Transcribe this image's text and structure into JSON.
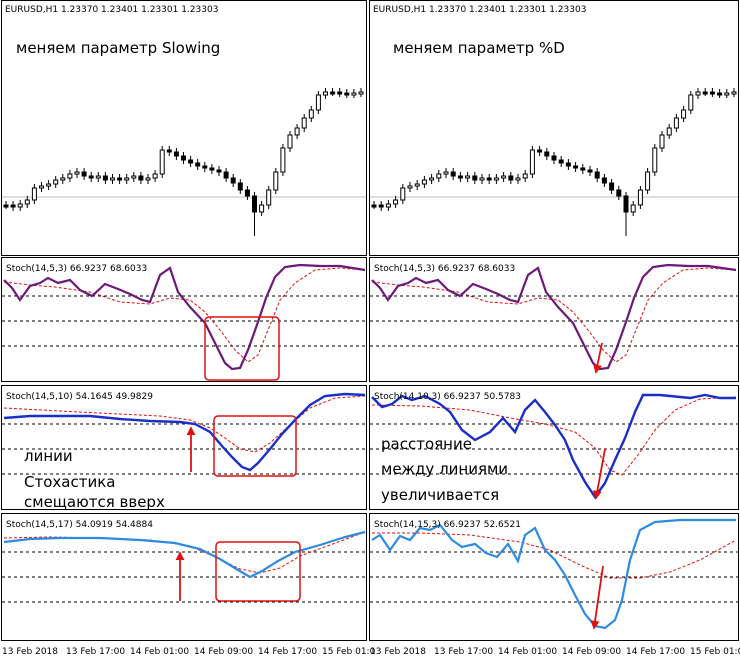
{
  "colors": {
    "candle": "#000000",
    "grid": "#000000",
    "stoch_purple": "#6b1a78",
    "stoch_blue_dark": "#1a2ec8",
    "stoch_blue_light": "#2e8be0",
    "signal_red": "#e01010",
    "box_red": "#e01010",
    "arrow_red": "#e01010"
  },
  "left_column": {
    "price_header": "EURUSD,H1  1.23370 1.23401 1.23301 1.23303",
    "title_label": "меняем параметр Slowing",
    "panels": [
      {
        "header": "Stoch(14,5,3) 66.9237 68.6033"
      },
      {
        "header": "Stoch(14,5,10) 54.1645 49.9829"
      },
      {
        "header": "Stoch(14,5,17) 54.0919 54.4884"
      }
    ],
    "annotation_lines": [
      "линии",
      "Стохастика",
      "смещаются вверх"
    ],
    "time_ticks": [
      "13 Feb 2018",
      "13 Feb 17:00",
      "14 Feb 01:00",
      "14 Feb 09:00",
      "14 Feb 17:00",
      "15 Feb 01:0"
    ]
  },
  "right_column": {
    "price_header": "EURUSD,H1  1.23370 1.23401 1.23301 1.23303",
    "title_label": "меняем параметр %D",
    "panels": [
      {
        "header": "Stoch(14,5,3) 66.9237 68.6033"
      },
      {
        "header": "Stoch(14,10,3) 66.9237 50.5783"
      },
      {
        "header": "Stoch(14,15,3) 66.9237 52.6521"
      }
    ],
    "annotation_lines": [
      "расстояние",
      "между линиями",
      "увеличивается"
    ],
    "time_ticks": [
      "13 Feb 2018",
      "13 Feb 17:00",
      "14 Feb 01:00",
      "14 Feb 09:00",
      "14 Feb 17:00",
      "15 Feb 01:0"
    ]
  }
}
